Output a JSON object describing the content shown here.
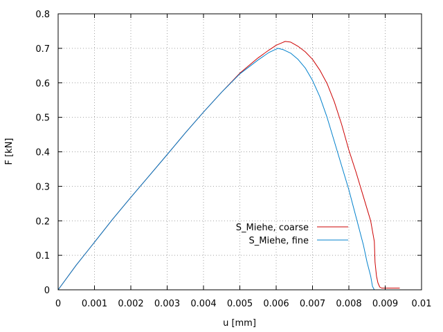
{
  "chart_data": {
    "type": "line",
    "title": "",
    "xlabel": "u [mm]",
    "ylabel": "F [kN]",
    "xlim": [
      0,
      0.01
    ],
    "ylim": [
      0,
      0.8
    ],
    "xticks": [
      "0",
      "0.001",
      "0.002",
      "0.003",
      "0.004",
      "0.005",
      "0.006",
      "0.007",
      "0.008",
      "0.009",
      "0.01"
    ],
    "yticks": [
      "0",
      "0.1",
      "0.2",
      "0.3",
      "0.4",
      "0.5",
      "0.6",
      "0.7",
      "0.8"
    ],
    "grid": true,
    "legend_position": "center-right",
    "series": [
      {
        "name": "S_Miehe, coarse",
        "color": "#cc0000",
        "x": [
          0,
          0.0005,
          0.001,
          0.0015,
          0.002,
          0.0025,
          0.003,
          0.0035,
          0.004,
          0.0045,
          0.005,
          0.0055,
          0.0058,
          0.006,
          0.0062,
          0.00625,
          0.0064,
          0.0066,
          0.0068,
          0.007,
          0.0072,
          0.0074,
          0.0076,
          0.0078,
          0.008,
          0.0082,
          0.0084,
          0.0086,
          0.0087,
          0.00872,
          0.00876,
          0.0088,
          0.00885,
          0.0089,
          0.0092,
          0.0094
        ],
        "y": [
          0,
          0.072,
          0.138,
          0.205,
          0.268,
          0.33,
          0.392,
          0.455,
          0.515,
          0.573,
          0.628,
          0.672,
          0.695,
          0.709,
          0.718,
          0.72,
          0.718,
          0.706,
          0.69,
          0.668,
          0.637,
          0.598,
          0.545,
          0.48,
          0.405,
          0.34,
          0.27,
          0.2,
          0.14,
          0.08,
          0.04,
          0.02,
          0.008,
          0.005,
          0.005,
          0.005
        ]
      },
      {
        "name": "S_Miehe, fine",
        "color": "#0080cc",
        "x": [
          0,
          0.0005,
          0.001,
          0.0015,
          0.002,
          0.0025,
          0.003,
          0.0035,
          0.004,
          0.0045,
          0.005,
          0.0055,
          0.0058,
          0.006,
          0.00605,
          0.0062,
          0.0064,
          0.0066,
          0.0068,
          0.007,
          0.0072,
          0.0074,
          0.0076,
          0.0078,
          0.008,
          0.0082,
          0.0084,
          0.0085,
          0.0086,
          0.00865,
          0.0087,
          0.00885
        ],
        "y": [
          0,
          0.072,
          0.138,
          0.205,
          0.268,
          0.33,
          0.392,
          0.455,
          0.515,
          0.573,
          0.626,
          0.666,
          0.688,
          0.698,
          0.7,
          0.696,
          0.686,
          0.668,
          0.643,
          0.607,
          0.56,
          0.5,
          0.43,
          0.36,
          0.29,
          0.21,
          0.13,
          0.08,
          0.04,
          0.01,
          0.0,
          0.0
        ]
      }
    ]
  }
}
